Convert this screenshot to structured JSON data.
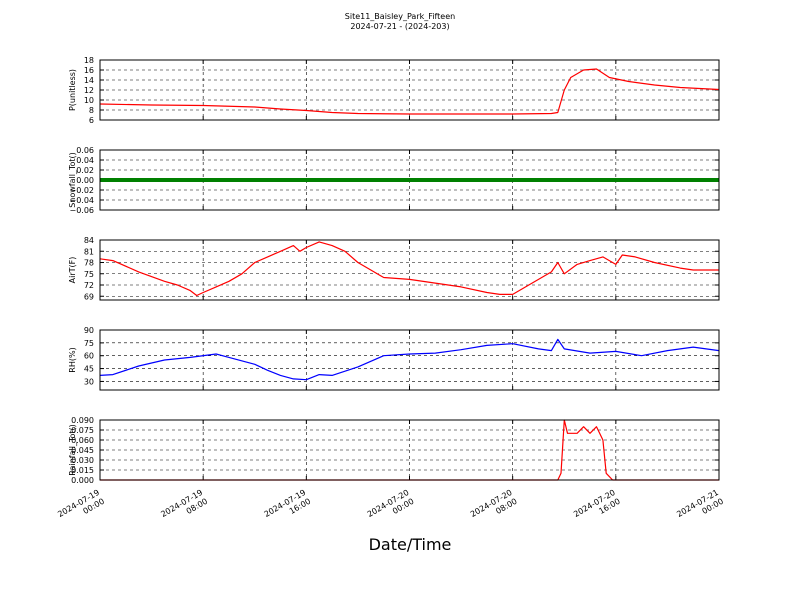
{
  "figure": {
    "title_line1": "Site11_Baisley_Park_Fifteen",
    "title_line2": "2024-07-21 - (2024-203)",
    "xlabel": "Date/Time",
    "colors": {
      "background": "#ffffff",
      "axes": "#000000",
      "red": "#ff0000",
      "green": "#008000",
      "blue": "#0000ff"
    }
  },
  "chart_data": {
    "type": "line",
    "grid": true,
    "x_axis": {
      "range": [
        "2024-07-19 00:00",
        "2024-07-21 00:00"
      ],
      "ticks": [
        {
          "line1": "2024-07-19",
          "line2": "00:00"
        },
        {
          "line1": "2024-07-19",
          "line2": "08:00"
        },
        {
          "line1": "2024-07-19",
          "line2": "16:00"
        },
        {
          "line1": "2024-07-20",
          "line2": "00:00"
        },
        {
          "line1": "2024-07-20",
          "line2": "08:00"
        },
        {
          "line1": "2024-07-20",
          "line2": "16:00"
        },
        {
          "line1": "2024-07-21",
          "line2": "00:00"
        }
      ]
    },
    "panels": [
      {
        "ylabel": "P(unitless)",
        "ylim": [
          6,
          18
        ],
        "yticks": [
          "6",
          "8",
          "10",
          "12",
          "14",
          "16",
          "18"
        ],
        "color": "#ff0000",
        "series": [
          {
            "x": "2024-07-19 00:00",
            "y": 9.2
          },
          {
            "x": "2024-07-19 04:00",
            "y": 9.0
          },
          {
            "x": "2024-07-19 08:00",
            "y": 8.9
          },
          {
            "x": "2024-07-19 12:00",
            "y": 8.6
          },
          {
            "x": "2024-07-19 14:00",
            "y": 8.2
          },
          {
            "x": "2024-07-19 16:00",
            "y": 7.9
          },
          {
            "x": "2024-07-19 18:00",
            "y": 7.5
          },
          {
            "x": "2024-07-19 20:00",
            "y": 7.3
          },
          {
            "x": "2024-07-20 00:00",
            "y": 7.2
          },
          {
            "x": "2024-07-20 08:00",
            "y": 7.2
          },
          {
            "x": "2024-07-20 11:00",
            "y": 7.3
          },
          {
            "x": "2024-07-20 11:30",
            "y": 7.5
          },
          {
            "x": "2024-07-20 12:00",
            "y": 12.0
          },
          {
            "x": "2024-07-20 12:30",
            "y": 14.5
          },
          {
            "x": "2024-07-20 13:30",
            "y": 16.0
          },
          {
            "x": "2024-07-20 14:30",
            "y": 16.2
          },
          {
            "x": "2024-07-20 15:30",
            "y": 14.5
          },
          {
            "x": "2024-07-20 17:00",
            "y": 13.7
          },
          {
            "x": "2024-07-20 19:00",
            "y": 13.0
          },
          {
            "x": "2024-07-20 21:00",
            "y": 12.5
          },
          {
            "x": "2024-07-21 00:00",
            "y": 12.1
          }
        ]
      },
      {
        "ylabel": "Snowfall_Tot()",
        "ylim": [
          -0.06,
          0.06
        ],
        "yticks": [
          "−0.06",
          "−0.04",
          "−0.02",
          "0.00",
          "0.02",
          "0.04",
          "0.06"
        ],
        "color": "#008000",
        "series": [
          {
            "x": "2024-07-19 00:00",
            "y": 0.0
          },
          {
            "x": "2024-07-21 00:00",
            "y": 0.0
          }
        ]
      },
      {
        "ylabel": "AirT(F)",
        "ylim": [
          68,
          84
        ],
        "yticks": [
          "69",
          "72",
          "75",
          "78",
          "81",
          "84"
        ],
        "color": "#ff0000",
        "series": [
          {
            "x": "2024-07-19 00:00",
            "y": 79.0
          },
          {
            "x": "2024-07-19 01:00",
            "y": 78.5
          },
          {
            "x": "2024-07-19 03:00",
            "y": 75.5
          },
          {
            "x": "2024-07-19 05:00",
            "y": 73.0
          },
          {
            "x": "2024-07-19 06:00",
            "y": 72.0
          },
          {
            "x": "2024-07-19 07:00",
            "y": 70.5
          },
          {
            "x": "2024-07-19 07:30",
            "y": 69.2
          },
          {
            "x": "2024-07-19 08:00",
            "y": 70.0
          },
          {
            "x": "2024-07-19 09:00",
            "y": 71.5
          },
          {
            "x": "2024-07-19 10:00",
            "y": 73.0
          },
          {
            "x": "2024-07-19 11:00",
            "y": 75.0
          },
          {
            "x": "2024-07-19 12:00",
            "y": 78.0
          },
          {
            "x": "2024-07-19 13:00",
            "y": 79.5
          },
          {
            "x": "2024-07-19 14:00",
            "y": 81.0
          },
          {
            "x": "2024-07-19 15:00",
            "y": 82.5
          },
          {
            "x": "2024-07-19 15:30",
            "y": 81.0
          },
          {
            "x": "2024-07-19 16:00",
            "y": 82.0
          },
          {
            "x": "2024-07-19 17:00",
            "y": 83.5
          },
          {
            "x": "2024-07-19 18:00",
            "y": 82.5
          },
          {
            "x": "2024-07-19 19:00",
            "y": 81.0
          },
          {
            "x": "2024-07-19 20:00",
            "y": 78.0
          },
          {
            "x": "2024-07-19 21:00",
            "y": 76.0
          },
          {
            "x": "2024-07-19 22:00",
            "y": 74.0
          },
          {
            "x": "2024-07-20 00:00",
            "y": 73.5
          },
          {
            "x": "2024-07-20 02:00",
            "y": 72.5
          },
          {
            "x": "2024-07-20 04:00",
            "y": 71.5
          },
          {
            "x": "2024-07-20 06:00",
            "y": 70.0
          },
          {
            "x": "2024-07-20 07:00",
            "y": 69.5
          },
          {
            "x": "2024-07-20 08:00",
            "y": 69.5
          },
          {
            "x": "2024-07-20 09:00",
            "y": 71.5
          },
          {
            "x": "2024-07-20 10:00",
            "y": 73.5
          },
          {
            "x": "2024-07-20 11:00",
            "y": 75.5
          },
          {
            "x": "2024-07-20 11:30",
            "y": 78.0
          },
          {
            "x": "2024-07-20 12:00",
            "y": 75.0
          },
          {
            "x": "2024-07-20 13:00",
            "y": 77.5
          },
          {
            "x": "2024-07-20 14:00",
            "y": 78.5
          },
          {
            "x": "2024-07-20 15:00",
            "y": 79.5
          },
          {
            "x": "2024-07-20 16:00",
            "y": 77.5
          },
          {
            "x": "2024-07-20 16:30",
            "y": 80.0
          },
          {
            "x": "2024-07-20 17:30",
            "y": 79.5
          },
          {
            "x": "2024-07-20 19:00",
            "y": 78.0
          },
          {
            "x": "2024-07-20 21:00",
            "y": 76.5
          },
          {
            "x": "2024-07-20 22:00",
            "y": 76.0
          },
          {
            "x": "2024-07-21 00:00",
            "y": 76.0
          }
        ]
      },
      {
        "ylabel": "RH(%)",
        "ylim": [
          20,
          90
        ],
        "yticks": [
          "30",
          "45",
          "60",
          "75",
          "90"
        ],
        "color": "#0000ff",
        "series": [
          {
            "x": "2024-07-19 00:00",
            "y": 37
          },
          {
            "x": "2024-07-19 01:00",
            "y": 38
          },
          {
            "x": "2024-07-19 03:00",
            "y": 48
          },
          {
            "x": "2024-07-19 05:00",
            "y": 55
          },
          {
            "x": "2024-07-19 07:00",
            "y": 58
          },
          {
            "x": "2024-07-19 09:00",
            "y": 62
          },
          {
            "x": "2024-07-19 10:00",
            "y": 58
          },
          {
            "x": "2024-07-19 12:00",
            "y": 50
          },
          {
            "x": "2024-07-19 13:00",
            "y": 43
          },
          {
            "x": "2024-07-19 14:00",
            "y": 37
          },
          {
            "x": "2024-07-19 15:00",
            "y": 33
          },
          {
            "x": "2024-07-19 16:00",
            "y": 32
          },
          {
            "x": "2024-07-19 17:00",
            "y": 38
          },
          {
            "x": "2024-07-19 18:00",
            "y": 37
          },
          {
            "x": "2024-07-19 20:00",
            "y": 47
          },
          {
            "x": "2024-07-19 22:00",
            "y": 60
          },
          {
            "x": "2024-07-20 00:00",
            "y": 62
          },
          {
            "x": "2024-07-20 02:00",
            "y": 63
          },
          {
            "x": "2024-07-20 04:00",
            "y": 67
          },
          {
            "x": "2024-07-20 06:00",
            "y": 72
          },
          {
            "x": "2024-07-20 08:00",
            "y": 74
          },
          {
            "x": "2024-07-20 10:00",
            "y": 68
          },
          {
            "x": "2024-07-20 11:00",
            "y": 66
          },
          {
            "x": "2024-07-20 11:30",
            "y": 79
          },
          {
            "x": "2024-07-20 12:00",
            "y": 68
          },
          {
            "x": "2024-07-20 14:00",
            "y": 63
          },
          {
            "x": "2024-07-20 16:00",
            "y": 65
          },
          {
            "x": "2024-07-20 18:00",
            "y": 60
          },
          {
            "x": "2024-07-20 20:00",
            "y": 66
          },
          {
            "x": "2024-07-20 22:00",
            "y": 70
          },
          {
            "x": "2024-07-21 00:00",
            "y": 66
          }
        ]
      },
      {
        "ylabel": "Rainfall_Tot()",
        "ylim": [
          0,
          0.09
        ],
        "yticks": [
          "0.000",
          "0.015",
          "0.030",
          "0.045",
          "0.060",
          "0.075",
          "0.090"
        ],
        "color": "#ff0000",
        "series": [
          {
            "x": "2024-07-19 00:00",
            "y": 0.0
          },
          {
            "x": "2024-07-20 11:30",
            "y": 0.0
          },
          {
            "x": "2024-07-20 11:45",
            "y": 0.01
          },
          {
            "x": "2024-07-20 12:00",
            "y": 0.09
          },
          {
            "x": "2024-07-20 12:15",
            "y": 0.07
          },
          {
            "x": "2024-07-20 13:00",
            "y": 0.07
          },
          {
            "x": "2024-07-20 13:30",
            "y": 0.08
          },
          {
            "x": "2024-07-20 14:00",
            "y": 0.07
          },
          {
            "x": "2024-07-20 14:30",
            "y": 0.08
          },
          {
            "x": "2024-07-20 15:00",
            "y": 0.06
          },
          {
            "x": "2024-07-20 15:15",
            "y": 0.01
          },
          {
            "x": "2024-07-20 15:45",
            "y": 0.0
          },
          {
            "x": "2024-07-21 00:00",
            "y": 0.0
          }
        ]
      }
    ]
  }
}
